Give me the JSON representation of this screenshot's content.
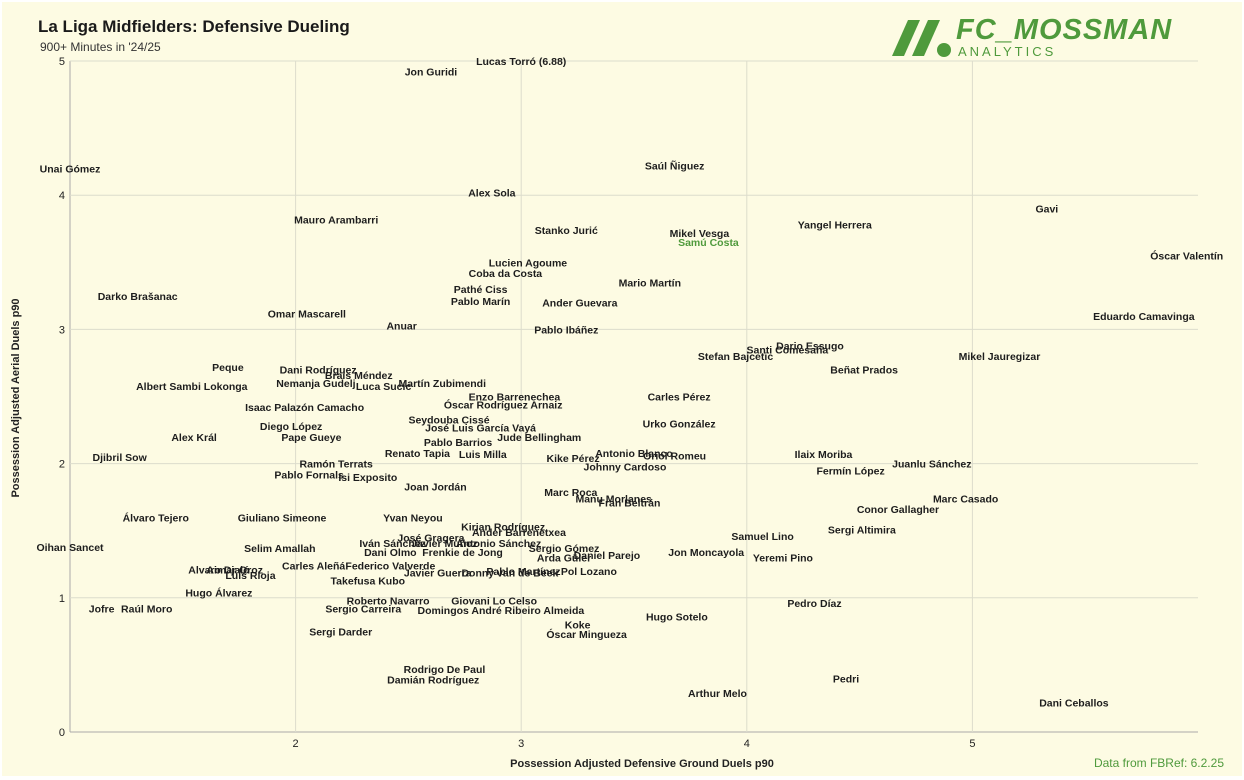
{
  "header": {
    "title": "La Liga Midfielders: Defensive Dueling",
    "subtitle": "900+ Minutes in '24/25"
  },
  "brand": {
    "name": "FC_MOSSMAN",
    "sub": "ANALYTICS",
    "logo_icon": "slash-stripes-dot-icon"
  },
  "footer": {
    "source": "Data from FBRef: 6.2.25"
  },
  "colors": {
    "background": "#fdfbe3",
    "grid": "#dcdccc",
    "accent": "#4f9a3c",
    "text": "#1d1d1d"
  },
  "chart_data": {
    "type": "scatter",
    "title": "La Liga Midfielders: Defensive Dueling",
    "subtitle": "900+ Minutes in '24/25",
    "xlabel": "Possession Adjusted Defensive Ground Duels p90",
    "ylabel": "Possession Adjusted Aerial Duels p90",
    "xlim": [
      1.0,
      6.0
    ],
    "ylim": [
      0,
      5
    ],
    "xticks": [
      2,
      3,
      4,
      5
    ],
    "yticks": [
      0,
      1,
      2,
      3,
      4,
      5
    ],
    "grid": true,
    "highlight": "Samú Costa",
    "points": [
      {
        "label": "Lucas Torró (6.88)",
        "x": 3.0,
        "y": 5.0
      },
      {
        "label": "Jon Guridi",
        "x": 2.6,
        "y": 4.92
      },
      {
        "label": "Unai Gómez",
        "x": 1.0,
        "y": 4.2
      },
      {
        "label": "Saúl Ñiguez",
        "x": 3.68,
        "y": 4.22
      },
      {
        "label": "Alex Sola",
        "x": 2.87,
        "y": 4.02
      },
      {
        "label": "Gavi",
        "x": 5.33,
        "y": 3.9
      },
      {
        "label": "Mauro Arambarri",
        "x": 2.18,
        "y": 3.82
      },
      {
        "label": "Yangel Herrera",
        "x": 4.39,
        "y": 3.78
      },
      {
        "label": "Stanko Jurić",
        "x": 3.2,
        "y": 3.74
      },
      {
        "label": "Mikel Vesga",
        "x": 3.79,
        "y": 3.72
      },
      {
        "label": "Samú Costa",
        "x": 3.83,
        "y": 3.65
      },
      {
        "label": "Óscar Valentín",
        "x": 5.95,
        "y": 3.55
      },
      {
        "label": "Lucien Agoume",
        "x": 3.03,
        "y": 3.5
      },
      {
        "label": "Coba da Costa",
        "x": 2.93,
        "y": 3.42
      },
      {
        "label": "Mario Martín",
        "x": 3.57,
        "y": 3.35
      },
      {
        "label": "Pathé Ciss",
        "x": 2.82,
        "y": 3.3
      },
      {
        "label": "Darko Brašanac",
        "x": 1.3,
        "y": 3.25
      },
      {
        "label": "Pablo Marín",
        "x": 2.82,
        "y": 3.21
      },
      {
        "label": "Ander Guevara",
        "x": 3.26,
        "y": 3.2
      },
      {
        "label": "Omar Mascarell",
        "x": 2.05,
        "y": 3.12
      },
      {
        "label": "Eduardo Camavinga",
        "x": 5.76,
        "y": 3.1
      },
      {
        "label": "Anuar",
        "x": 2.47,
        "y": 3.03
      },
      {
        "label": "Pablo Ibáñez",
        "x": 3.2,
        "y": 3.0
      },
      {
        "label": "Dario Essugo",
        "x": 4.28,
        "y": 2.88
      },
      {
        "label": "Santi Comesaña",
        "x": 4.18,
        "y": 2.85
      },
      {
        "label": "Stefan Bajcetic",
        "x": 3.95,
        "y": 2.8
      },
      {
        "label": "Mikel Jauregizar",
        "x": 5.12,
        "y": 2.8
      },
      {
        "label": "Peque",
        "x": 1.7,
        "y": 2.72
      },
      {
        "label": "Beñat Prados",
        "x": 4.52,
        "y": 2.7
      },
      {
        "label": "Brais Méndez",
        "x": 2.28,
        "y": 2.66
      },
      {
        "label": "Dani Rodríguez",
        "x": 2.1,
        "y": 2.7
      },
      {
        "label": "Nemanja Gudelj",
        "x": 2.09,
        "y": 2.6
      },
      {
        "label": "Albert Sambi Lokonga",
        "x": 1.54,
        "y": 2.58
      },
      {
        "label": "Luca Sucic",
        "x": 2.39,
        "y": 2.58
      },
      {
        "label": "Martín Zubimendi",
        "x": 2.65,
        "y": 2.6
      },
      {
        "label": "Enzo Barrenechea",
        "x": 2.97,
        "y": 2.5
      },
      {
        "label": "Carles Pérez",
        "x": 3.7,
        "y": 2.5
      },
      {
        "label": "Óscar Rodríguez Arnaiz",
        "x": 2.92,
        "y": 2.44
      },
      {
        "label": "Isaac Palazón Camacho",
        "x": 2.04,
        "y": 2.42
      },
      {
        "label": "Seydouba Cissé",
        "x": 2.68,
        "y": 2.33
      },
      {
        "label": "José Luis García Vayá",
        "x": 2.82,
        "y": 2.27
      },
      {
        "label": "Urko González",
        "x": 3.7,
        "y": 2.3
      },
      {
        "label": "Diego López",
        "x": 1.98,
        "y": 2.28
      },
      {
        "label": "Jude Bellingham",
        "x": 3.08,
        "y": 2.2
      },
      {
        "label": "Alex Král",
        "x": 1.55,
        "y": 2.2
      },
      {
        "label": "Pape Gueye",
        "x": 2.07,
        "y": 2.2
      },
      {
        "label": "Pablo Barrios",
        "x": 2.72,
        "y": 2.16
      },
      {
        "label": "Renato Tapia",
        "x": 2.54,
        "y": 2.08
      },
      {
        "label": "Luis Milla",
        "x": 2.83,
        "y": 2.07
      },
      {
        "label": "Antonio Blanco",
        "x": 3.5,
        "y": 2.08
      },
      {
        "label": "Oriol Romeu",
        "x": 3.68,
        "y": 2.06
      },
      {
        "label": "Ilaix Moriba",
        "x": 4.34,
        "y": 2.07
      },
      {
        "label": "Kike Pérez",
        "x": 3.23,
        "y": 2.04
      },
      {
        "label": "Djibril Sow",
        "x": 1.22,
        "y": 2.05
      },
      {
        "label": "Ramón Terrats",
        "x": 2.18,
        "y": 2.0
      },
      {
        "label": "Juanlu Sánchez",
        "x": 4.82,
        "y": 2.0
      },
      {
        "label": "Johnny Cardoso",
        "x": 3.46,
        "y": 1.98
      },
      {
        "label": "Fermín López",
        "x": 4.46,
        "y": 1.95
      },
      {
        "label": "Pablo Fornals",
        "x": 2.06,
        "y": 1.92
      },
      {
        "label": "Isi Exposito",
        "x": 2.32,
        "y": 1.9
      },
      {
        "label": "Joan Jordán",
        "x": 2.62,
        "y": 1.83
      },
      {
        "label": "Marc Roca",
        "x": 3.22,
        "y": 1.79
      },
      {
        "label": "Marc Casado",
        "x": 4.97,
        "y": 1.74
      },
      {
        "label": "Manu Morlanes",
        "x": 3.41,
        "y": 1.74
      },
      {
        "label": "Fran Beltrán",
        "x": 3.48,
        "y": 1.71
      },
      {
        "label": "Conor Gallagher",
        "x": 4.67,
        "y": 1.66
      },
      {
        "label": "Álvaro Tejero",
        "x": 1.38,
        "y": 1.6
      },
      {
        "label": "Giuliano Simeone",
        "x": 1.94,
        "y": 1.6
      },
      {
        "label": "Yvan Neyou",
        "x": 2.52,
        "y": 1.6
      },
      {
        "label": "Kirian Rodríguez",
        "x": 2.92,
        "y": 1.53
      },
      {
        "label": "Ander Barrenetxea",
        "x": 2.99,
        "y": 1.49
      },
      {
        "label": "Sergi Altimira",
        "x": 4.51,
        "y": 1.51
      },
      {
        "label": "José Gragera",
        "x": 2.6,
        "y": 1.45
      },
      {
        "label": "Samuel Lino",
        "x": 4.07,
        "y": 1.46
      },
      {
        "label": "Oihan Sancet",
        "x": 1.0,
        "y": 1.38
      },
      {
        "label": "Iván Sánchez",
        "x": 2.43,
        "y": 1.41
      },
      {
        "label": "Javier Muñoz",
        "x": 2.66,
        "y": 1.41
      },
      {
        "label": "Antonio Sánchez",
        "x": 2.9,
        "y": 1.41
      },
      {
        "label": "Selim Amallah",
        "x": 1.93,
        "y": 1.37
      },
      {
        "label": "Sergio Gómez",
        "x": 3.19,
        "y": 1.37
      },
      {
        "label": "Dani Olmo",
        "x": 2.42,
        "y": 1.34
      },
      {
        "label": "Frenkie de Jong",
        "x": 2.74,
        "y": 1.34
      },
      {
        "label": "Jon Moncayola",
        "x": 3.82,
        "y": 1.34
      },
      {
        "label": "Yeremi Pino",
        "x": 4.16,
        "y": 1.3
      },
      {
        "label": "Arda Güler",
        "x": 3.19,
        "y": 1.3
      },
      {
        "label": "Daniel Parejo",
        "x": 3.38,
        "y": 1.32
      },
      {
        "label": "Carles Aleñá",
        "x": 2.08,
        "y": 1.24
      },
      {
        "label": "Federico Valverde",
        "x": 2.42,
        "y": 1.24
      },
      {
        "label": "Javier Guerra",
        "x": 2.63,
        "y": 1.19
      },
      {
        "label": "Pablo Martínez",
        "x": 3.01,
        "y": 1.2
      },
      {
        "label": "Aimar Oroz",
        "x": 1.73,
        "y": 1.21
      },
      {
        "label": "Alvaro Djaló",
        "x": 1.66,
        "y": 1.21
      },
      {
        "label": "Donny van de Beek",
        "x": 2.95,
        "y": 1.19
      },
      {
        "label": "Pol Lozano",
        "x": 3.3,
        "y": 1.2
      },
      {
        "label": "Luis Rioja",
        "x": 1.8,
        "y": 1.17
      },
      {
        "label": "Takefusa Kubo",
        "x": 2.32,
        "y": 1.13
      },
      {
        "label": "Hugo Álvarez",
        "x": 1.66,
        "y": 1.04
      },
      {
        "label": "Roberto Navarro",
        "x": 2.41,
        "y": 0.98
      },
      {
        "label": "Giovani Lo Celso",
        "x": 2.88,
        "y": 0.98
      },
      {
        "label": "Pedro Díaz",
        "x": 4.3,
        "y": 0.96
      },
      {
        "label": "Jofre",
        "x": 1.14,
        "y": 0.92
      },
      {
        "label": "Raúl Moro",
        "x": 1.34,
        "y": 0.92
      },
      {
        "label": "Sergio Carreira",
        "x": 2.3,
        "y": 0.92
      },
      {
        "label": "Domingos André Ribeiro Almeida",
        "x": 2.91,
        "y": 0.91
      },
      {
        "label": "Hugo Sotelo",
        "x": 3.69,
        "y": 0.86
      },
      {
        "label": "Koke",
        "x": 3.25,
        "y": 0.8
      },
      {
        "label": "Sergi Darder",
        "x": 2.2,
        "y": 0.75
      },
      {
        "label": "Óscar Mingueza",
        "x": 3.29,
        "y": 0.73
      },
      {
        "label": "Rodrigo De Paul",
        "x": 2.66,
        "y": 0.47
      },
      {
        "label": "Pedri",
        "x": 4.44,
        "y": 0.4
      },
      {
        "label": "Damián Rodríguez",
        "x": 2.61,
        "y": 0.39
      },
      {
        "label": "Arthur Melo",
        "x": 3.87,
        "y": 0.29
      },
      {
        "label": "Dani Ceballos",
        "x": 5.45,
        "y": 0.22
      }
    ]
  }
}
